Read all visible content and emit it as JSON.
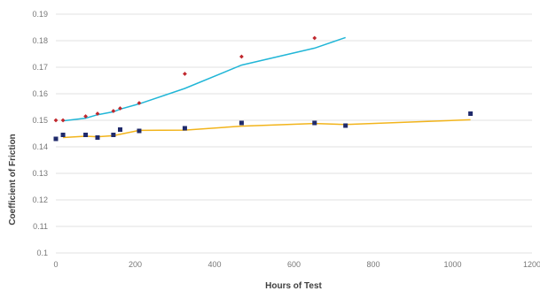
{
  "chart_data": {
    "type": "scatter",
    "title": "",
    "xlabel": "Hours of Test",
    "ylabel": "Coefficient of Friction",
    "xlim": [
      0,
      1200
    ],
    "ylim": [
      0.1,
      0.19
    ],
    "x_ticks": [
      0,
      200,
      400,
      600,
      800,
      1000,
      1200
    ],
    "y_ticks": [
      0.1,
      0.11,
      0.12,
      0.13,
      0.14,
      0.15,
      0.16,
      0.17,
      0.18,
      0.19
    ],
    "grid": "horizontal",
    "legend": "none",
    "series": [
      {
        "marker": "diamond",
        "color": "#c0272d",
        "points": [
          {
            "x": 0,
            "y": 0.15
          },
          {
            "x": 18,
            "y": 0.15
          },
          {
            "x": 75,
            "y": 0.1515
          },
          {
            "x": 105,
            "y": 0.1525
          },
          {
            "x": 145,
            "y": 0.1535
          },
          {
            "x": 162,
            "y": 0.1545
          },
          {
            "x": 210,
            "y": 0.1565
          },
          {
            "x": 325,
            "y": 0.1675
          },
          {
            "x": 468,
            "y": 0.174
          },
          {
            "x": 652,
            "y": 0.181
          }
        ],
        "trend": {
          "color": "#21b6d7",
          "points": [
            {
              "x": 18,
              "y": 0.1498
            },
            {
              "x": 75,
              "y": 0.1508
            },
            {
              "x": 105,
              "y": 0.1521
            },
            {
              "x": 145,
              "y": 0.1532
            },
            {
              "x": 162,
              "y": 0.1542
            },
            {
              "x": 210,
              "y": 0.1562
            },
            {
              "x": 325,
              "y": 0.162
            },
            {
              "x": 468,
              "y": 0.1708
            },
            {
              "x": 652,
              "y": 0.1772
            },
            {
              "x": 730,
              "y": 0.1812
            }
          ]
        }
      },
      {
        "marker": "square",
        "color": "#1f2a6b",
        "points": [
          {
            "x": 0,
            "y": 0.143
          },
          {
            "x": 18,
            "y": 0.1445
          },
          {
            "x": 75,
            "y": 0.1445
          },
          {
            "x": 105,
            "y": 0.1435
          },
          {
            "x": 145,
            "y": 0.1445
          },
          {
            "x": 162,
            "y": 0.1465
          },
          {
            "x": 210,
            "y": 0.146
          },
          {
            "x": 325,
            "y": 0.147
          },
          {
            "x": 468,
            "y": 0.149
          },
          {
            "x": 652,
            "y": 0.149
          },
          {
            "x": 730,
            "y": 0.148
          },
          {
            "x": 1045,
            "y": 0.1525
          }
        ],
        "trend": {
          "color": "#f2b41b",
          "points": [
            {
              "x": 18,
              "y": 0.1435
            },
            {
              "x": 75,
              "y": 0.144
            },
            {
              "x": 105,
              "y": 0.1438
            },
            {
              "x": 145,
              "y": 0.1442
            },
            {
              "x": 210,
              "y": 0.1462
            },
            {
              "x": 325,
              "y": 0.1463
            },
            {
              "x": 468,
              "y": 0.1478
            },
            {
              "x": 652,
              "y": 0.1488
            },
            {
              "x": 730,
              "y": 0.1484
            },
            {
              "x": 1045,
              "y": 0.1502
            }
          ]
        }
      }
    ]
  }
}
